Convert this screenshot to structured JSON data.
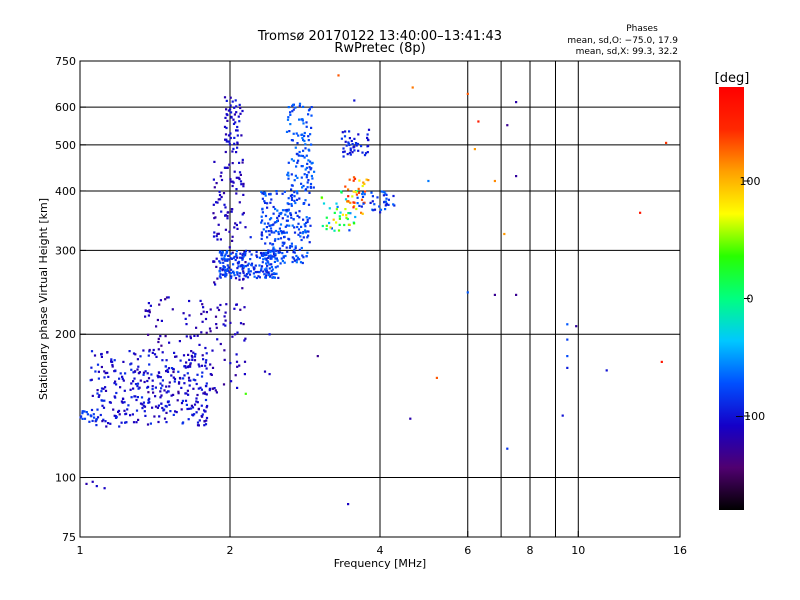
{
  "chart_data": {
    "type": "scatter",
    "title": "Tromsø 20170122 13:40:00–13:41:43",
    "subtitle": "RwPretec (8p)",
    "stats": {
      "heading": "Phases",
      "line_o": "mean, sd,O: −75.0, 17.9",
      "line_x": "mean, sd,X:  99.3, 32.2"
    },
    "xlabel": "Frequency [MHz]",
    "ylabel": "Stationary phase Virtual Height [km]",
    "x_scale": "log",
    "y_scale": "log",
    "xlim": [
      1,
      16
    ],
    "ylim": [
      75,
      750
    ],
    "x_ticks": [
      1,
      2,
      4,
      6,
      8,
      10,
      16
    ],
    "x_tick_labels": [
      "1",
      "2",
      "4",
      "6",
      "8",
      "10",
      "16"
    ],
    "y_ticks": [
      75,
      100,
      200,
      300,
      400,
      500,
      600,
      750
    ],
    "y_tick_labels": [
      "75",
      "100",
      "200",
      "300",
      "400",
      "500",
      "600",
      "750"
    ],
    "x_gridlines": [
      2,
      4,
      6,
      7,
      8,
      9,
      10
    ],
    "y_gridlines": [
      100,
      200,
      300,
      400,
      500,
      600
    ],
    "grid": true,
    "colorbar": {
      "label": "[deg]",
      "range": [
        -180,
        180
      ],
      "ticks": [
        100,
        0,
        -100
      ],
      "tick_labels": [
        "100",
        "0",
        "−100"
      ],
      "colors": [
        "#000000",
        "#500070",
        "#1400c8",
        "#0050ff",
        "#00c8ff",
        "#00ff80",
        "#28ff00",
        "#ffff00",
        "#ffa000",
        "#ff2800",
        "#ff0000"
      ]
    },
    "clusters": [
      {
        "name": "",
        "n": 320,
        "x": [
          1.05,
          1.8
        ],
        "y": [
          128,
          185
        ],
        "phase": [
          -120,
          -85
        ]
      },
      {
        "name": "",
        "n": 140,
        "x": [
          1.35,
          2.15
        ],
        "y": [
          150,
          240
        ],
        "phase": [
          -130,
          -100
        ]
      },
      {
        "name": "",
        "n": 110,
        "x": [
          1.85,
          2.15
        ],
        "y": [
          250,
          470
        ],
        "phase": [
          -125,
          -100
        ]
      },
      {
        "name": "",
        "n": 55,
        "x": [
          1.95,
          2.12
        ],
        "y": [
          480,
          630
        ],
        "phase": [
          -120,
          -95
        ]
      },
      {
        "name": "",
        "n": 200,
        "x": [
          1.9,
          2.5
        ],
        "y": [
          262,
          300
        ],
        "phase": [
          -100,
          -65
        ]
      },
      {
        "name": "",
        "n": 230,
        "x": [
          2.3,
          2.9
        ],
        "y": [
          280,
          400
        ],
        "phase": [
          -95,
          -60
        ]
      },
      {
        "name": "",
        "n": 110,
        "x": [
          2.6,
          2.95
        ],
        "y": [
          400,
          610
        ],
        "phase": [
          -90,
          -60
        ]
      },
      {
        "name": "",
        "n": 40,
        "x": [
          3.05,
          3.6
        ],
        "y": [
          330,
          400
        ],
        "phase": [
          -80,
          100
        ]
      },
      {
        "name": "",
        "n": 35,
        "x": [
          3.4,
          3.8
        ],
        "y": [
          350,
          430
        ],
        "phase": [
          60,
          160
        ]
      },
      {
        "name": "",
        "n": 45,
        "x": [
          3.35,
          3.8
        ],
        "y": [
          470,
          540
        ],
        "phase": [
          -110,
          -80
        ]
      },
      {
        "name": "",
        "n": 40,
        "x": [
          3.6,
          4.3
        ],
        "y": [
          360,
          400
        ],
        "phase": [
          -100,
          -60
        ]
      },
      {
        "name": "",
        "n": 18,
        "x": [
          1.0,
          1.08
        ],
        "y": [
          130,
          138
        ],
        "phase": [
          -90,
          -75
        ]
      }
    ],
    "points": [
      {
        "x": 1.03,
        "y": 97,
        "phase": -120
      },
      {
        "x": 1.06,
        "y": 98,
        "phase": -115
      },
      {
        "x": 1.12,
        "y": 95,
        "phase": -110
      },
      {
        "x": 1.08,
        "y": 96,
        "phase": -105
      },
      {
        "x": 3.45,
        "y": 88,
        "phase": -110
      },
      {
        "x": 3.3,
        "y": 700,
        "phase": 130
      },
      {
        "x": 3.55,
        "y": 620,
        "phase": -100
      },
      {
        "x": 4.65,
        "y": 660,
        "phase": 120
      },
      {
        "x": 6.0,
        "y": 640,
        "phase": 130
      },
      {
        "x": 7.5,
        "y": 615,
        "phase": -120
      },
      {
        "x": 6.3,
        "y": 560,
        "phase": 155
      },
      {
        "x": 7.2,
        "y": 550,
        "phase": -130
      },
      {
        "x": 6.2,
        "y": 490,
        "phase": 110
      },
      {
        "x": 7.5,
        "y": 430,
        "phase": -125
      },
      {
        "x": 6.8,
        "y": 420,
        "phase": 115
      },
      {
        "x": 5.0,
        "y": 420,
        "phase": -60
      },
      {
        "x": 7.1,
        "y": 325,
        "phase": 110
      },
      {
        "x": 6.0,
        "y": 245,
        "phase": -70
      },
      {
        "x": 6.8,
        "y": 242,
        "phase": -130
      },
      {
        "x": 7.5,
        "y": 242,
        "phase": -130
      },
      {
        "x": 15.0,
        "y": 505,
        "phase": 140
      },
      {
        "x": 13.3,
        "y": 360,
        "phase": 160
      },
      {
        "x": 9.5,
        "y": 210,
        "phase": -70
      },
      {
        "x": 9.9,
        "y": 208,
        "phase": -125
      },
      {
        "x": 9.5,
        "y": 195,
        "phase": -80
      },
      {
        "x": 9.5,
        "y": 180,
        "phase": -75
      },
      {
        "x": 9.5,
        "y": 170,
        "phase": -95
      },
      {
        "x": 11.4,
        "y": 168,
        "phase": -100
      },
      {
        "x": 14.7,
        "y": 175,
        "phase": 160
      },
      {
        "x": 9.3,
        "y": 135,
        "phase": -100
      },
      {
        "x": 7.2,
        "y": 115,
        "phase": -85
      },
      {
        "x": 4.6,
        "y": 133,
        "phase": -120
      },
      {
        "x": 5.2,
        "y": 162,
        "phase": 130
      },
      {
        "x": 3.0,
        "y": 180,
        "phase": -130
      },
      {
        "x": 2.15,
        "y": 150,
        "phase": 40
      },
      {
        "x": 2.4,
        "y": 165,
        "phase": -110
      },
      {
        "x": 2.35,
        "y": 167,
        "phase": -115
      },
      {
        "x": 2.2,
        "y": 320,
        "phase": -90
      },
      {
        "x": 2.4,
        "y": 200,
        "phase": -100
      }
    ]
  }
}
